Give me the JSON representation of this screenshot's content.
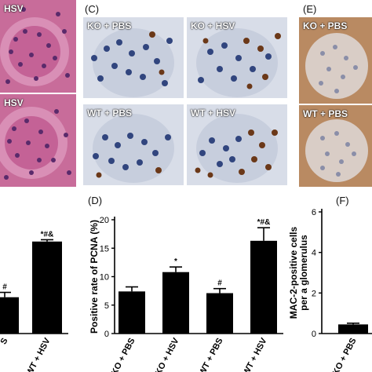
{
  "panels": {
    "c_label": "(C)",
    "d_label": "(D)",
    "e_label": "(E)",
    "f_label": "(F)"
  },
  "micrographs": {
    "a_top": "HSV",
    "a_bottom": "HSV",
    "c1": "KO + PBS",
    "c2": "KO + HSV",
    "c3": "WT + PBS",
    "c4": "WT + HSV",
    "e_top": "KO + PBS",
    "e_bottom": "WT + PBS"
  },
  "colors": {
    "he_bg": "#c86c9a",
    "ihc_bg": "#d8dde8",
    "nucleus_blue": "#31457e",
    "nucleus_brown": "#6b3818",
    "mac_bg": "#b98a62",
    "bar": "#000000"
  },
  "chart_data": [
    {
      "type": "bar",
      "categories": [
        "",
        "WT + HSV"
      ],
      "values": [
        3.0,
        7.6
      ],
      "errors": [
        0.4,
        0.15
      ],
      "annotations": [
        "#",
        "*#&"
      ],
      "ylim": [
        0,
        9.4
      ]
    },
    {
      "type": "bar",
      "categories": [
        "KO + PBS",
        "KO + HSV",
        "WT + PBS",
        "WT + HSV"
      ],
      "values": [
        7.4,
        10.8,
        7.1,
        16.3
      ],
      "errors": [
        0.8,
        0.9,
        0.8,
        2.3
      ],
      "annotations": [
        "",
        "*",
        "#",
        "*#&"
      ],
      "ylabel": "Positive rate of PCNA (%)",
      "yticks": [
        0,
        5,
        10,
        15,
        20
      ],
      "ylim": [
        0,
        20
      ]
    },
    {
      "type": "bar",
      "categories": [
        "KO + PBS"
      ],
      "values": [
        0.45
      ],
      "errors": [
        0.06
      ],
      "ylabel": "MAC-2-positive cells per a glomerulus",
      "yticks": [
        0,
        2,
        4,
        6
      ],
      "ylim": [
        0,
        6
      ]
    }
  ]
}
